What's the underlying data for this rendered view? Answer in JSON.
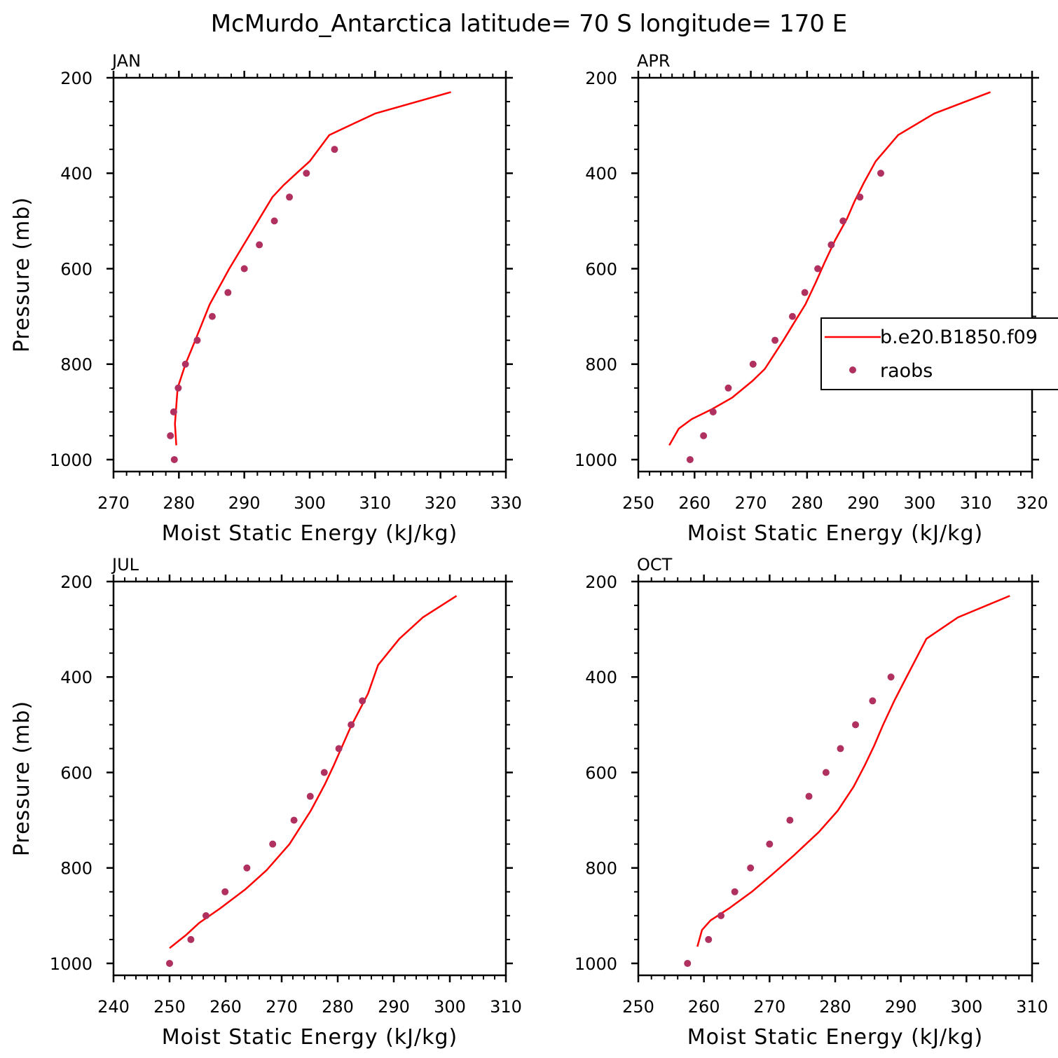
{
  "title": "McMurdo_Antarctica  latitude= 70 S longitude= 170 E",
  "colors": {
    "model_line": "#ff0000",
    "obs_marker": "#b03060",
    "axes": "#000000",
    "background": "#ffffff"
  },
  "legend": {
    "placement": "right side of APR panel",
    "entries": [
      {
        "label": "b.e20.B1850.f09",
        "style": "line",
        "color": "#ff0000"
      },
      {
        "label": "raobs",
        "style": "marker",
        "color": "#b03060"
      }
    ]
  },
  "chart_data": [
    {
      "type": "line",
      "panel_label": "JAN",
      "xlabel": "Moist Static Energy (kJ/kg)",
      "ylabel": "Pressure (mb)",
      "xlim": [
        270,
        330
      ],
      "ylim": [
        1025,
        200
      ],
      "y_inverted": true,
      "x_ticks": [
        270,
        280,
        290,
        300,
        310,
        320,
        330
      ],
      "y_ticks": [
        200,
        400,
        600,
        800,
        1000
      ],
      "series": [
        {
          "name": "b.e20.B1850.f09",
          "kind": "line",
          "points": [
            [
              279.6,
              970
            ],
            [
              279.4,
              925
            ],
            [
              279.8,
              850
            ],
            [
              281.0,
              800
            ],
            [
              282.5,
              750
            ],
            [
              284.7,
              675
            ],
            [
              287.7,
              600
            ],
            [
              291.0,
              525
            ],
            [
              294.3,
              450
            ],
            [
              296.0,
              425
            ],
            [
              298.0,
              400
            ],
            [
              300.0,
              375
            ],
            [
              303.0,
              320
            ],
            [
              310.0,
              275
            ],
            [
              321.6,
              230
            ]
          ]
        },
        {
          "name": "raobs",
          "kind": "scatter",
          "points": [
            [
              279.3,
              1000
            ],
            [
              278.7,
              950
            ],
            [
              279.2,
              900
            ],
            [
              279.9,
              850
            ],
            [
              281.0,
              800
            ],
            [
              282.8,
              750
            ],
            [
              285.1,
              700
            ],
            [
              287.5,
              650
            ],
            [
              290.0,
              600
            ],
            [
              292.3,
              550
            ],
            [
              294.6,
              500
            ],
            [
              296.9,
              450
            ],
            [
              299.5,
              400
            ],
            [
              303.8,
              350
            ]
          ]
        }
      ]
    },
    {
      "type": "line",
      "panel_label": "APR",
      "xlabel": "Moist Static Energy (kJ/kg)",
      "ylabel": "",
      "xlim": [
        250,
        320
      ],
      "ylim": [
        1025,
        200
      ],
      "y_inverted": true,
      "x_ticks": [
        250,
        260,
        270,
        280,
        290,
        300,
        310,
        320
      ],
      "y_ticks": [
        200,
        400,
        600,
        800,
        1000
      ],
      "series": [
        {
          "name": "b.e20.B1850.f09",
          "kind": "line",
          "points": [
            [
              255.5,
              970
            ],
            [
              257.2,
              935
            ],
            [
              259.5,
              915
            ],
            [
              263.0,
              895
            ],
            [
              266.7,
              870
            ],
            [
              270.3,
              835
            ],
            [
              272.5,
              810
            ],
            [
              275.8,
              750
            ],
            [
              277.6,
              715
            ],
            [
              279.7,
              675
            ],
            [
              281.5,
              630
            ],
            [
              283.2,
              585
            ],
            [
              285.0,
              540
            ],
            [
              287.1,
              495
            ],
            [
              288.4,
              460
            ],
            [
              290.1,
              420
            ],
            [
              292.2,
              375
            ],
            [
              296.2,
              320
            ],
            [
              302.6,
              275
            ],
            [
              312.6,
              230
            ]
          ]
        },
        {
          "name": "raobs",
          "kind": "scatter",
          "points": [
            [
              259.2,
              1000
            ],
            [
              261.6,
              950
            ],
            [
              263.3,
              900
            ],
            [
              266.0,
              850
            ],
            [
              270.4,
              800
            ],
            [
              274.3,
              750
            ],
            [
              277.4,
              700
            ],
            [
              279.6,
              650
            ],
            [
              281.9,
              600
            ],
            [
              284.3,
              550
            ],
            [
              286.4,
              500
            ],
            [
              289.4,
              450
            ],
            [
              293.1,
              400
            ]
          ]
        }
      ]
    },
    {
      "type": "line",
      "panel_label": "JUL",
      "xlabel": "Moist Static Energy (kJ/kg)",
      "ylabel": "Pressure (mb)",
      "xlim": [
        240,
        310
      ],
      "ylim": [
        1025,
        200
      ],
      "y_inverted": true,
      "x_ticks": [
        240,
        250,
        260,
        270,
        280,
        290,
        300,
        310
      ],
      "y_ticks": [
        200,
        400,
        600,
        800,
        1000
      ],
      "series": [
        {
          "name": "b.e20.B1850.f09",
          "kind": "line",
          "points": [
            [
              250.0,
              968
            ],
            [
              253.0,
              940
            ],
            [
              255.3,
              915
            ],
            [
              259.0,
              885
            ],
            [
              263.5,
              845
            ],
            [
              267.3,
              805
            ],
            [
              271.4,
              750
            ],
            [
              275.2,
              680
            ],
            [
              277.7,
              625
            ],
            [
              279.3,
              585
            ],
            [
              280.8,
              545
            ],
            [
              282.3,
              505
            ],
            [
              285.4,
              435
            ],
            [
              287.2,
              375
            ],
            [
              291.0,
              320
            ],
            [
              295.2,
              275
            ],
            [
              301.2,
              230
            ]
          ]
        },
        {
          "name": "raobs",
          "kind": "scatter",
          "points": [
            [
              250.0,
              1000
            ],
            [
              253.8,
              950
            ],
            [
              256.5,
              900
            ],
            [
              259.9,
              850
            ],
            [
              263.8,
              800
            ],
            [
              268.4,
              750
            ],
            [
              272.2,
              700
            ],
            [
              275.1,
              650
            ],
            [
              277.6,
              600
            ],
            [
              280.2,
              550
            ],
            [
              282.4,
              500
            ],
            [
              284.4,
              450
            ]
          ]
        }
      ]
    },
    {
      "type": "line",
      "panel_label": "OCT",
      "xlabel": "Moist Static Energy (kJ/kg)",
      "ylabel": "",
      "xlim": [
        250,
        310
      ],
      "ylim": [
        1025,
        200
      ],
      "y_inverted": true,
      "x_ticks": [
        250,
        260,
        270,
        280,
        290,
        300,
        310
      ],
      "y_ticks": [
        200,
        400,
        600,
        800,
        1000
      ],
      "series": [
        {
          "name": "b.e20.B1850.f09",
          "kind": "line",
          "points": [
            [
              259.0,
              965
            ],
            [
              259.7,
              930
            ],
            [
              261.0,
              910
            ],
            [
              263.8,
              885
            ],
            [
              267.3,
              850
            ],
            [
              270.3,
              815
            ],
            [
              273.6,
              775
            ],
            [
              277.5,
              725
            ],
            [
              280.4,
              680
            ],
            [
              282.8,
              630
            ],
            [
              284.5,
              585
            ],
            [
              285.9,
              545
            ],
            [
              287.3,
              500
            ],
            [
              289.0,
              450
            ],
            [
              290.3,
              415
            ],
            [
              293.9,
              320
            ],
            [
              298.7,
              275
            ],
            [
              306.6,
              230
            ]
          ]
        },
        {
          "name": "raobs",
          "kind": "scatter",
          "points": [
            [
              257.5,
              1000
            ],
            [
              260.7,
              950
            ],
            [
              262.6,
              900
            ],
            [
              264.7,
              850
            ],
            [
              267.1,
              800
            ],
            [
              270.0,
              750
            ],
            [
              273.1,
              700
            ],
            [
              276.0,
              650
            ],
            [
              278.6,
              600
            ],
            [
              280.8,
              550
            ],
            [
              283.1,
              500
            ],
            [
              285.7,
              450
            ],
            [
              288.5,
              400
            ]
          ]
        }
      ]
    }
  ]
}
